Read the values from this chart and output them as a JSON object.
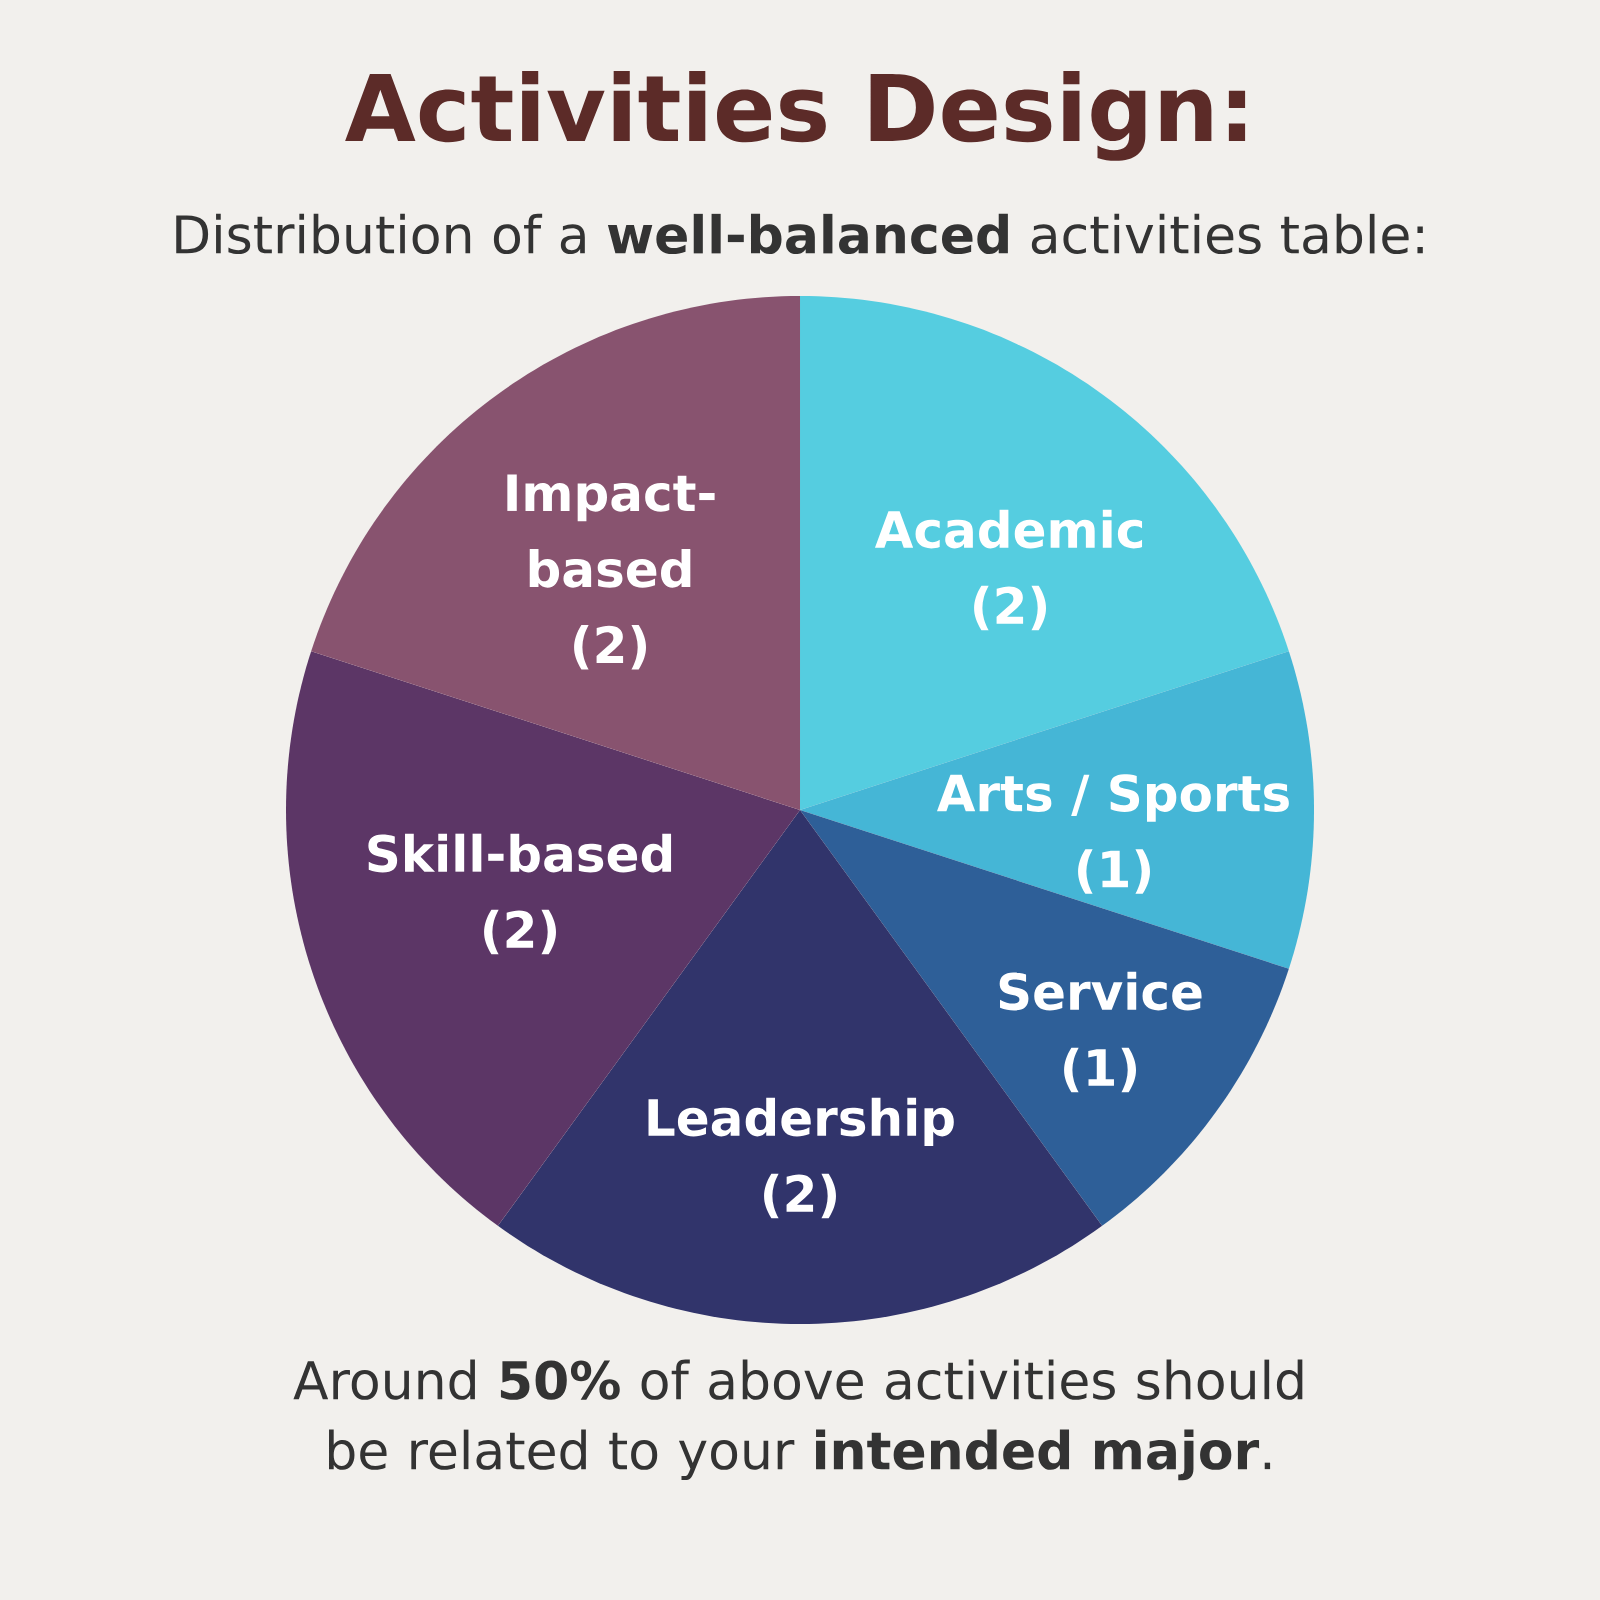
{
  "chart_data": {
    "type": "pie",
    "title": "Activities Design:",
    "subtitle": "Distribution of a **well-balanced** activities table:",
    "categories": [
      "Academic",
      "Arts / Sports",
      "Service",
      "Leadership",
      "Skill-based",
      "Impact-based"
    ],
    "values": [
      2,
      1,
      1,
      2,
      2,
      2
    ],
    "value_labels": [
      "(2)",
      "(1)",
      "(1)",
      "(2)",
      "(2)",
      "(2)"
    ],
    "colors": [
      "#55cde0",
      "#45b6d6",
      "#2e5f98",
      "#31346b",
      "#5c3666",
      "#88536f"
    ],
    "annotations": [
      "Around **50%** of above activities should be related to your **intended major**."
    ]
  }
}
